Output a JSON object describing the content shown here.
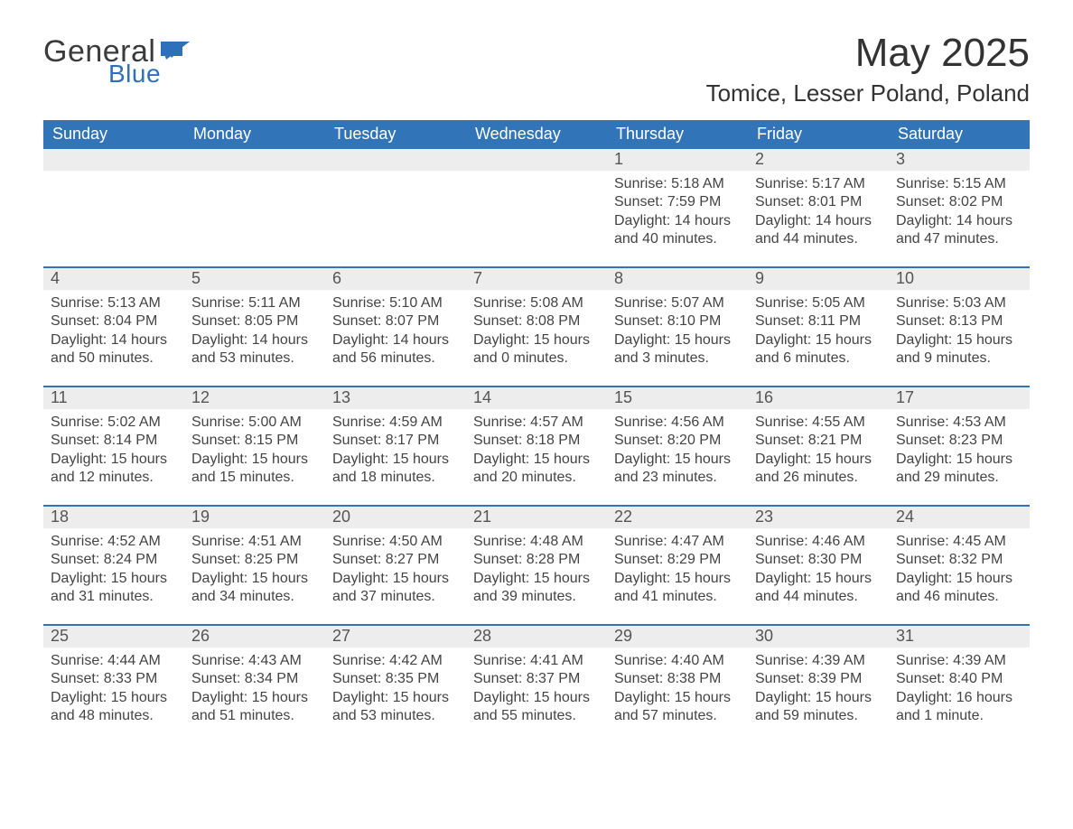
{
  "brand": {
    "word1": "General",
    "word2": "Blue",
    "word1_color": "#3b3b3b",
    "word2_color": "#2f71b8",
    "shape_color": "#2f71b8"
  },
  "title": "May 2025",
  "location": "Tomice, Lesser Poland, Poland",
  "colors": {
    "header_bg": "#3175b8",
    "header_text": "#ffffff",
    "daynum_bg": "#ededed",
    "daynum_text": "#555555",
    "body_text": "#444444",
    "rule": "#3175b8",
    "page_bg": "#ffffff"
  },
  "weekdays": [
    "Sunday",
    "Monday",
    "Tuesday",
    "Wednesday",
    "Thursday",
    "Friday",
    "Saturday"
  ],
  "weeks": [
    [
      {
        "blank": true
      },
      {
        "blank": true
      },
      {
        "blank": true
      },
      {
        "blank": true
      },
      {
        "num": "1",
        "sunrise": "Sunrise: 5:18 AM",
        "sunset": "Sunset: 7:59 PM",
        "daylight": "Daylight: 14 hours and 40 minutes."
      },
      {
        "num": "2",
        "sunrise": "Sunrise: 5:17 AM",
        "sunset": "Sunset: 8:01 PM",
        "daylight": "Daylight: 14 hours and 44 minutes."
      },
      {
        "num": "3",
        "sunrise": "Sunrise: 5:15 AM",
        "sunset": "Sunset: 8:02 PM",
        "daylight": "Daylight: 14 hours and 47 minutes."
      }
    ],
    [
      {
        "num": "4",
        "sunrise": "Sunrise: 5:13 AM",
        "sunset": "Sunset: 8:04 PM",
        "daylight": "Daylight: 14 hours and 50 minutes."
      },
      {
        "num": "5",
        "sunrise": "Sunrise: 5:11 AM",
        "sunset": "Sunset: 8:05 PM",
        "daylight": "Daylight: 14 hours and 53 minutes."
      },
      {
        "num": "6",
        "sunrise": "Sunrise: 5:10 AM",
        "sunset": "Sunset: 8:07 PM",
        "daylight": "Daylight: 14 hours and 56 minutes."
      },
      {
        "num": "7",
        "sunrise": "Sunrise: 5:08 AM",
        "sunset": "Sunset: 8:08 PM",
        "daylight": "Daylight: 15 hours and 0 minutes."
      },
      {
        "num": "8",
        "sunrise": "Sunrise: 5:07 AM",
        "sunset": "Sunset: 8:10 PM",
        "daylight": "Daylight: 15 hours and 3 minutes."
      },
      {
        "num": "9",
        "sunrise": "Sunrise: 5:05 AM",
        "sunset": "Sunset: 8:11 PM",
        "daylight": "Daylight: 15 hours and 6 minutes."
      },
      {
        "num": "10",
        "sunrise": "Sunrise: 5:03 AM",
        "sunset": "Sunset: 8:13 PM",
        "daylight": "Daylight: 15 hours and 9 minutes."
      }
    ],
    [
      {
        "num": "11",
        "sunrise": "Sunrise: 5:02 AM",
        "sunset": "Sunset: 8:14 PM",
        "daylight": "Daylight: 15 hours and 12 minutes."
      },
      {
        "num": "12",
        "sunrise": "Sunrise: 5:00 AM",
        "sunset": "Sunset: 8:15 PM",
        "daylight": "Daylight: 15 hours and 15 minutes."
      },
      {
        "num": "13",
        "sunrise": "Sunrise: 4:59 AM",
        "sunset": "Sunset: 8:17 PM",
        "daylight": "Daylight: 15 hours and 18 minutes."
      },
      {
        "num": "14",
        "sunrise": "Sunrise: 4:57 AM",
        "sunset": "Sunset: 8:18 PM",
        "daylight": "Daylight: 15 hours and 20 minutes."
      },
      {
        "num": "15",
        "sunrise": "Sunrise: 4:56 AM",
        "sunset": "Sunset: 8:20 PM",
        "daylight": "Daylight: 15 hours and 23 minutes."
      },
      {
        "num": "16",
        "sunrise": "Sunrise: 4:55 AM",
        "sunset": "Sunset: 8:21 PM",
        "daylight": "Daylight: 15 hours and 26 minutes."
      },
      {
        "num": "17",
        "sunrise": "Sunrise: 4:53 AM",
        "sunset": "Sunset: 8:23 PM",
        "daylight": "Daylight: 15 hours and 29 minutes."
      }
    ],
    [
      {
        "num": "18",
        "sunrise": "Sunrise: 4:52 AM",
        "sunset": "Sunset: 8:24 PM",
        "daylight": "Daylight: 15 hours and 31 minutes."
      },
      {
        "num": "19",
        "sunrise": "Sunrise: 4:51 AM",
        "sunset": "Sunset: 8:25 PM",
        "daylight": "Daylight: 15 hours and 34 minutes."
      },
      {
        "num": "20",
        "sunrise": "Sunrise: 4:50 AM",
        "sunset": "Sunset: 8:27 PM",
        "daylight": "Daylight: 15 hours and 37 minutes."
      },
      {
        "num": "21",
        "sunrise": "Sunrise: 4:48 AM",
        "sunset": "Sunset: 8:28 PM",
        "daylight": "Daylight: 15 hours and 39 minutes."
      },
      {
        "num": "22",
        "sunrise": "Sunrise: 4:47 AM",
        "sunset": "Sunset: 8:29 PM",
        "daylight": "Daylight: 15 hours and 41 minutes."
      },
      {
        "num": "23",
        "sunrise": "Sunrise: 4:46 AM",
        "sunset": "Sunset: 8:30 PM",
        "daylight": "Daylight: 15 hours and 44 minutes."
      },
      {
        "num": "24",
        "sunrise": "Sunrise: 4:45 AM",
        "sunset": "Sunset: 8:32 PM",
        "daylight": "Daylight: 15 hours and 46 minutes."
      }
    ],
    [
      {
        "num": "25",
        "sunrise": "Sunrise: 4:44 AM",
        "sunset": "Sunset: 8:33 PM",
        "daylight": "Daylight: 15 hours and 48 minutes."
      },
      {
        "num": "26",
        "sunrise": "Sunrise: 4:43 AM",
        "sunset": "Sunset: 8:34 PM",
        "daylight": "Daylight: 15 hours and 51 minutes."
      },
      {
        "num": "27",
        "sunrise": "Sunrise: 4:42 AM",
        "sunset": "Sunset: 8:35 PM",
        "daylight": "Daylight: 15 hours and 53 minutes."
      },
      {
        "num": "28",
        "sunrise": "Sunrise: 4:41 AM",
        "sunset": "Sunset: 8:37 PM",
        "daylight": "Daylight: 15 hours and 55 minutes."
      },
      {
        "num": "29",
        "sunrise": "Sunrise: 4:40 AM",
        "sunset": "Sunset: 8:38 PM",
        "daylight": "Daylight: 15 hours and 57 minutes."
      },
      {
        "num": "30",
        "sunrise": "Sunrise: 4:39 AM",
        "sunset": "Sunset: 8:39 PM",
        "daylight": "Daylight: 15 hours and 59 minutes."
      },
      {
        "num": "31",
        "sunrise": "Sunrise: 4:39 AM",
        "sunset": "Sunset: 8:40 PM",
        "daylight": "Daylight: 16 hours and 1 minute."
      }
    ]
  ]
}
